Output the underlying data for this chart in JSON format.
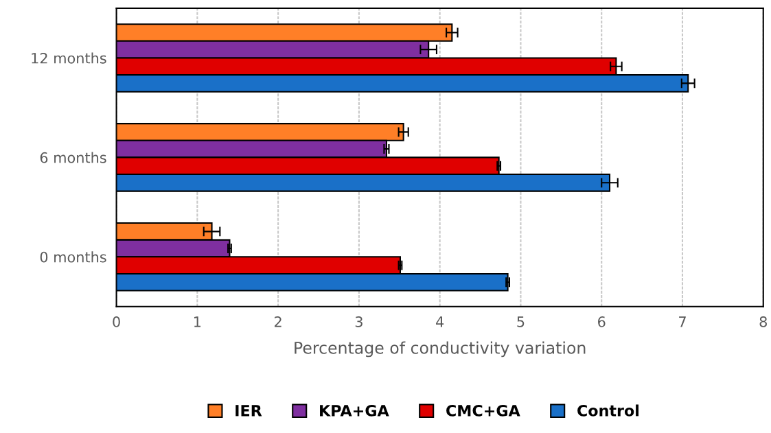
{
  "chart_data": {
    "type": "bar",
    "orientation": "horizontal",
    "xlabel": "Percentage of conductivity variation",
    "categories": [
      "12 months",
      "6 months",
      "0 months"
    ],
    "series": [
      {
        "name": "IER",
        "color": "#ff7f27",
        "values": [
          4.15,
          3.55,
          1.18
        ],
        "errors": [
          0.07,
          0.06,
          0.1
        ]
      },
      {
        "name": "KPA+GA",
        "color": "#7f2fa0",
        "values": [
          3.86,
          3.34,
          1.4
        ],
        "errors": [
          0.1,
          0.03,
          0.02
        ]
      },
      {
        "name": "CMC+GA",
        "color": "#e00000",
        "values": [
          6.18,
          4.73,
          3.51
        ],
        "errors": [
          0.07,
          0.02,
          0.02
        ]
      },
      {
        "name": "Control",
        "color": "#1a70c8",
        "values": [
          7.07,
          6.1,
          4.84
        ],
        "errors": [
          0.08,
          0.1,
          0.02
        ]
      }
    ],
    "xlim": [
      0,
      8
    ],
    "xticks": [
      0,
      1,
      2,
      3,
      4,
      5,
      6,
      7,
      8
    ],
    "grid": "x",
    "legend": "bottom"
  }
}
